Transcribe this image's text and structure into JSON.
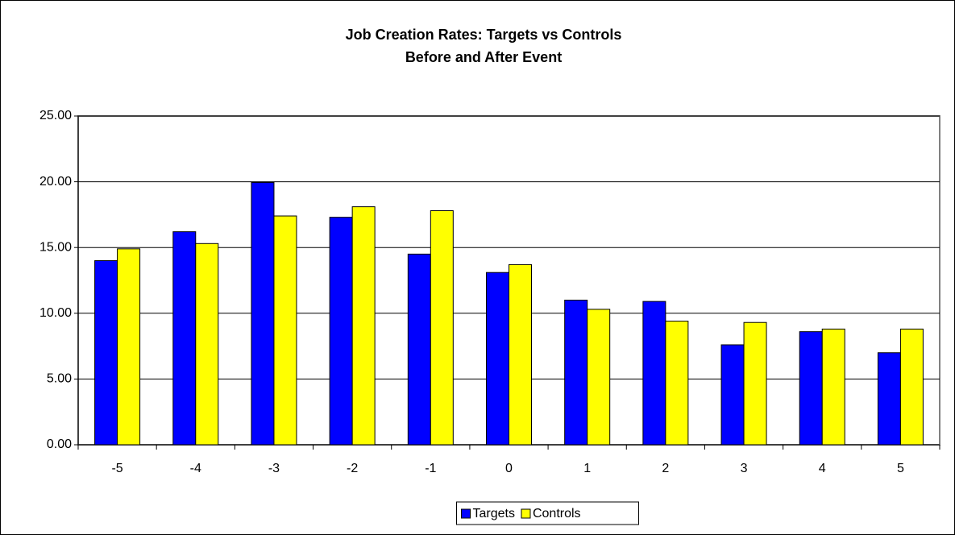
{
  "chart_data": {
    "type": "bar",
    "title": "Job Creation Rates: Targets vs Controls",
    "subtitle": "Before and After Event",
    "categories": [
      "-5",
      "-4",
      "-3",
      "-2",
      "-1",
      "0",
      "1",
      "2",
      "3",
      "4",
      "5"
    ],
    "series": [
      {
        "name": "Targets",
        "color": "#0000ff",
        "values": [
          14.0,
          16.2,
          19.95,
          17.3,
          14.5,
          13.1,
          11.0,
          10.9,
          7.6,
          8.6,
          7.0
        ]
      },
      {
        "name": "Controls",
        "color": "#ffff00",
        "values": [
          14.9,
          15.3,
          17.4,
          18.1,
          17.8,
          13.7,
          10.3,
          9.4,
          9.3,
          8.8,
          8.8
        ]
      }
    ],
    "ylim": [
      0,
      25
    ],
    "yticks": [
      {
        "value": 0,
        "label": "0.00"
      },
      {
        "value": 5,
        "label": "5.00"
      },
      {
        "value": 10,
        "label": "10.00"
      },
      {
        "value": 15,
        "label": "15.00"
      },
      {
        "value": 20,
        "label": "20.00"
      },
      {
        "value": 25,
        "label": "25.00"
      }
    ],
    "grid": true,
    "legend": "bottom"
  }
}
